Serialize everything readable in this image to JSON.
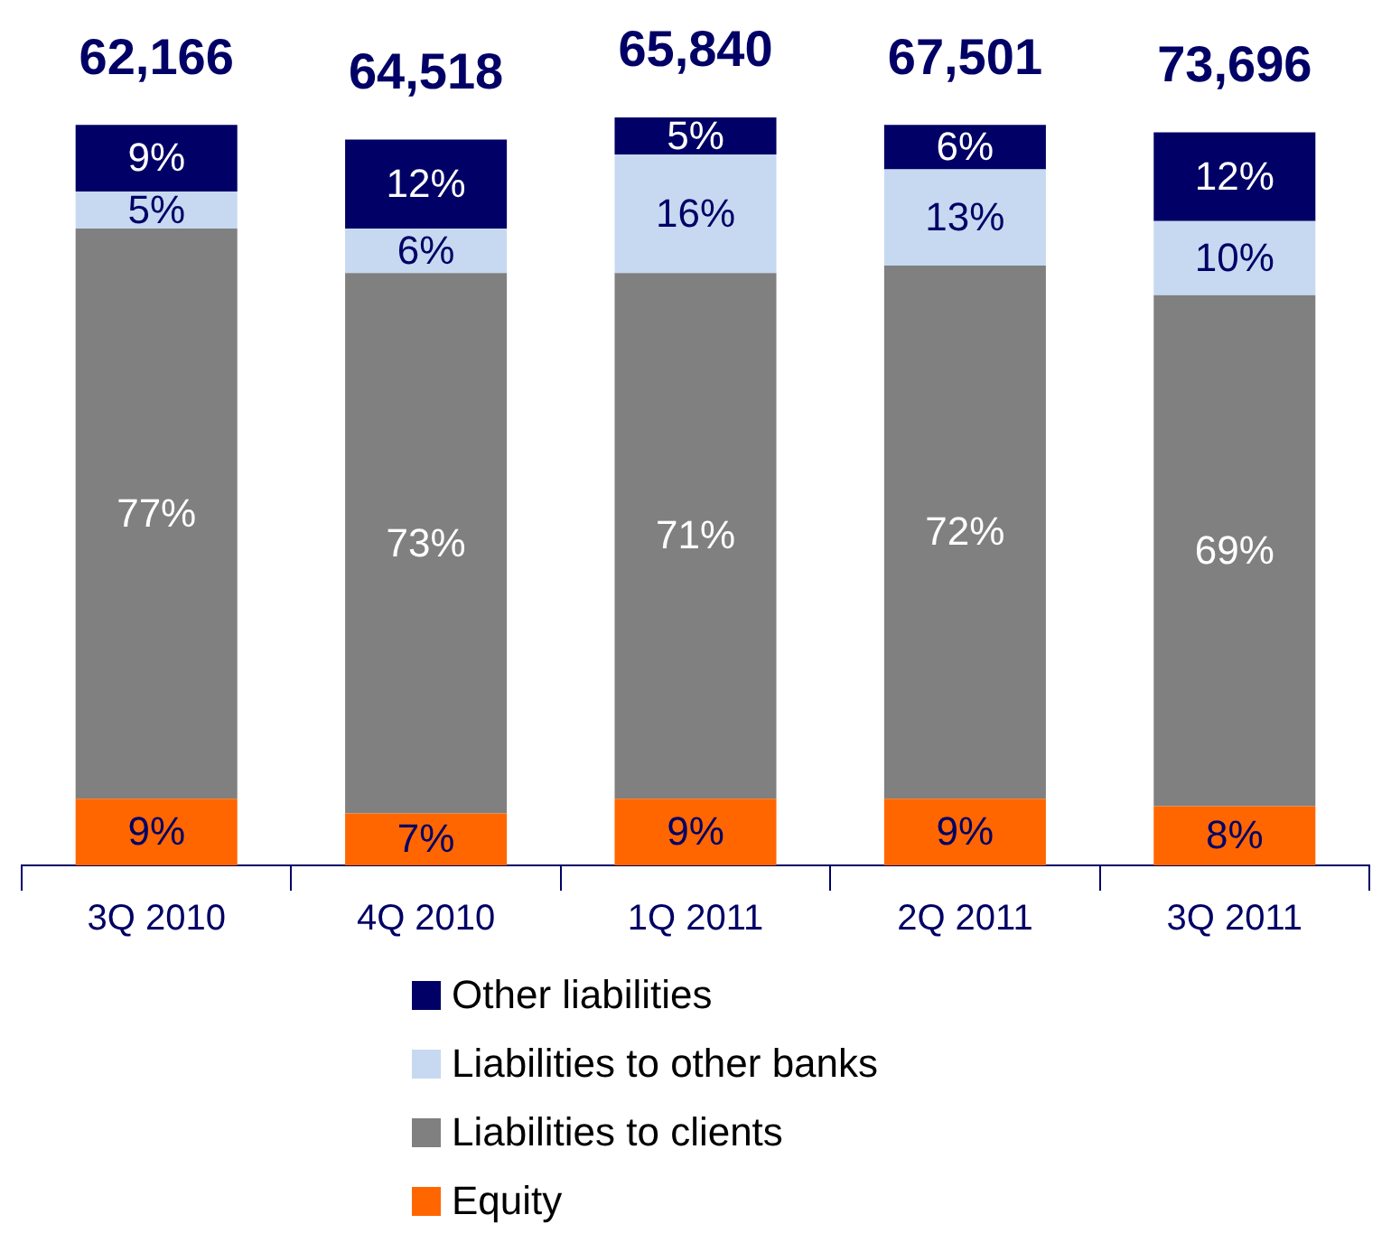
{
  "chart_data": {
    "type": "bar",
    "stacked": true,
    "categories": [
      "3Q 2010",
      "4Q 2010",
      "1Q 2011",
      "2Q 2011",
      "3Q 2011"
    ],
    "series": [
      {
        "name": "Equity",
        "color": "#ff6600",
        "values": [
          9,
          7,
          9,
          9,
          8
        ],
        "value_labels": [
          "9%",
          "7%",
          "9%",
          "9%",
          "8%"
        ]
      },
      {
        "name": "Liabilities to clients",
        "color": "#808080",
        "values": [
          77,
          73,
          71,
          72,
          69
        ],
        "value_labels": [
          "77%",
          "73%",
          "71%",
          "72%",
          "69%"
        ]
      },
      {
        "name": "Liabilities to other banks",
        "color": "#c6d9f1",
        "values": [
          5,
          6,
          16,
          13,
          10
        ],
        "value_labels": [
          "5%",
          "6%",
          "16%",
          "13%",
          "10%"
        ]
      },
      {
        "name": "Other liabilities",
        "color": "#000066",
        "values": [
          9,
          12,
          5,
          6,
          12
        ],
        "value_labels": [
          "9%",
          "12%",
          "5%",
          "6%",
          "12%"
        ]
      }
    ],
    "annotations": [
      {
        "text": "62,166",
        "x": "3Q 2010",
        "y": 100
      },
      {
        "text": "64,518",
        "x": "4Q 2010",
        "y": 98
      },
      {
        "text": "65,840",
        "x": "1Q 2011",
        "y": 101
      },
      {
        "text": "67,501",
        "x": "2Q 2011",
        "y": 100
      },
      {
        "text": "73,696",
        "x": "3Q 2011",
        "y": 99
      }
    ],
    "legend": "bottom",
    "grid": false
  }
}
